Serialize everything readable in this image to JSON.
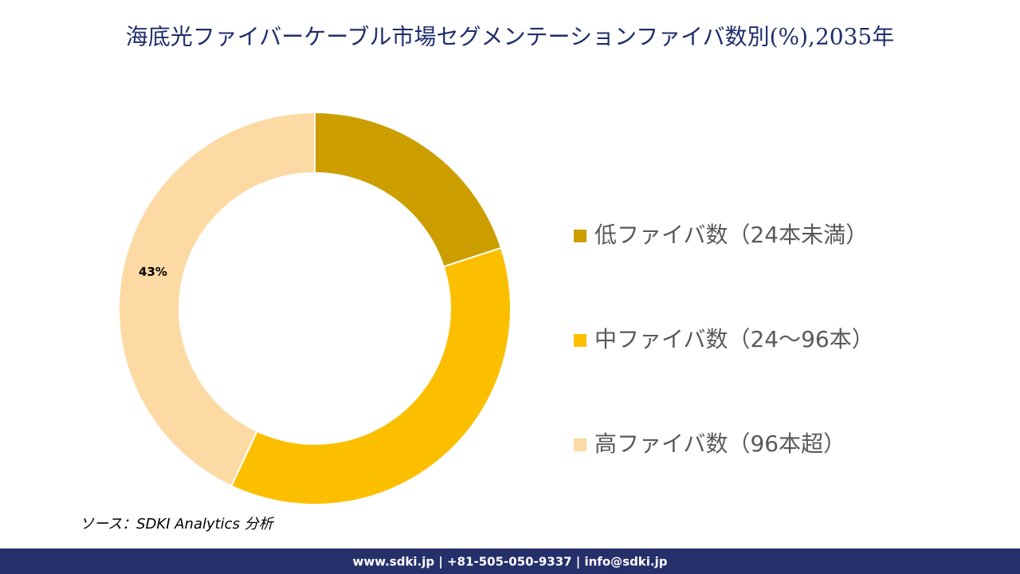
{
  "chart_data": {
    "type": "donut",
    "title": "海底光ファイバーケーブル市場セグメンテーションファイバ数別(%),2035年",
    "categories": [
      "低ファイバ数（24本未満）",
      "中ファイバ数（24〜96本）",
      "高ファイバ数（96本超）"
    ],
    "values": [
      20,
      37,
      43
    ],
    "value_labels": [
      null,
      null,
      "43%"
    ],
    "colors": [
      "#cc9e00",
      "#fbbf00",
      "#fdd9a4"
    ],
    "legend": "right"
  },
  "source": "ソース：SDKI Analytics 分析",
  "footer": "www.sdki.jp | +81-505-050-9337 | info@sdki.jp"
}
